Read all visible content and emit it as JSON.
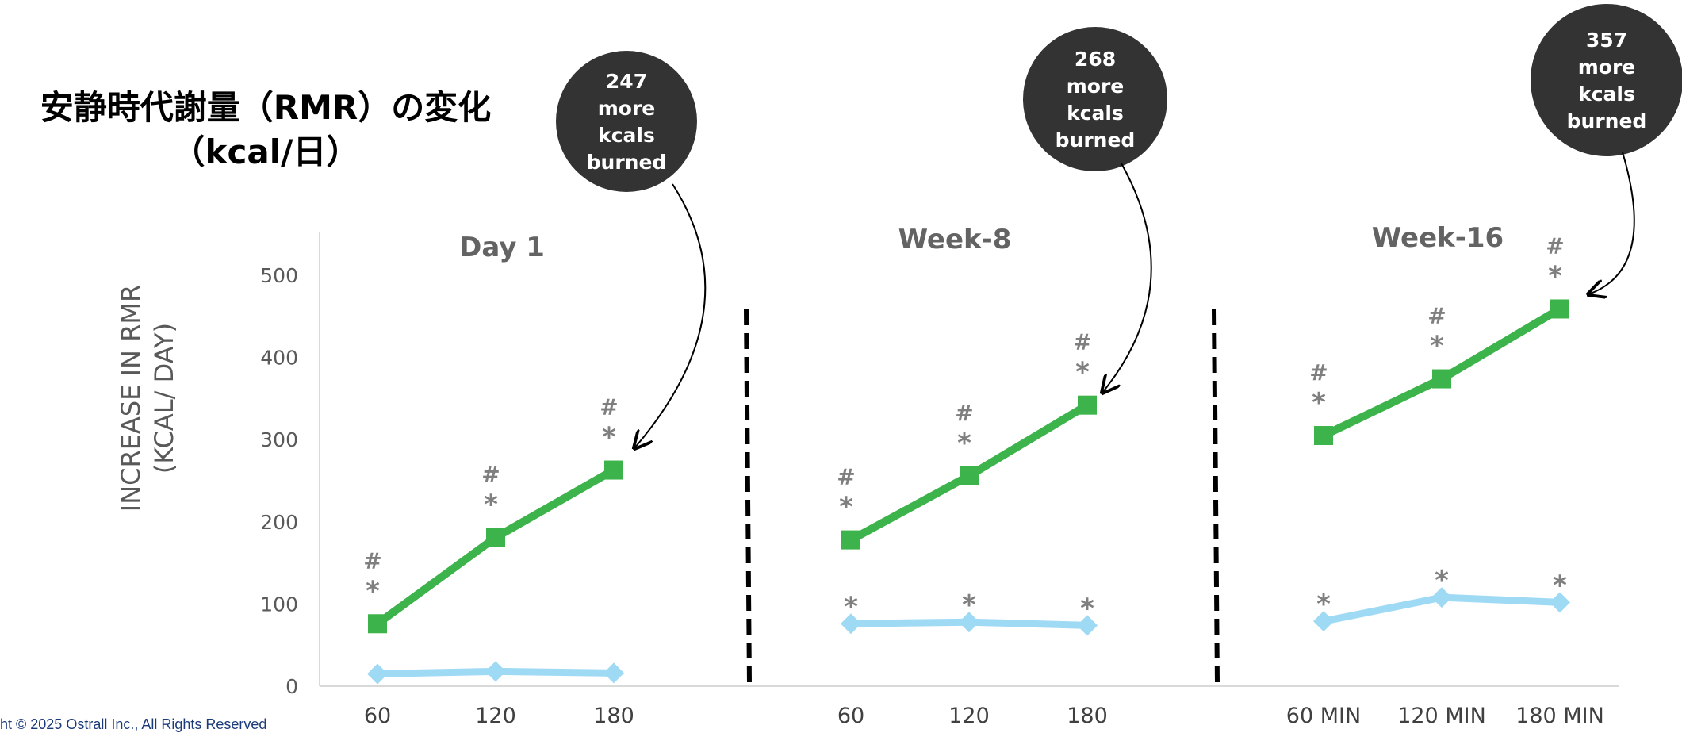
{
  "title_line1": "安静時代謝量（RMR）の変化",
  "title_line2": "（kcal/日）",
  "copyright": "ht © 2025 Ostrall Inc., All Rights Reserved",
  "chart_data": {
    "type": "line",
    "ylabel_line1": "INCREASE IN RMR",
    "ylabel_line2": "(KCAL/ DAY)",
    "ylim": [
      0,
      550
    ],
    "yticks": [
      0,
      100,
      200,
      300,
      400,
      500
    ],
    "grid": false,
    "colors": {
      "series_a": "#3cb44b",
      "series_b": "#9fdaf5",
      "callout": "#333333"
    },
    "panels": [
      {
        "title": "Day 1",
        "x": [
          "60",
          "120",
          "180"
        ],
        "series": [
          {
            "values": [
              76,
              181,
              263
            ],
            "marker": "square",
            "markers_above": [
              "#\n*",
              "#\n*",
              "#\n*"
            ]
          },
          {
            "values": [
              15,
              18,
              16
            ],
            "marker": "diamond",
            "markers_above": [
              "",
              "",
              ""
            ]
          }
        ],
        "callout": [
          "247",
          "more",
          "kcals",
          "burned"
        ]
      },
      {
        "title": "Week-8",
        "x": [
          "60",
          "120",
          "180"
        ],
        "series": [
          {
            "values": [
              178,
              256,
              342
            ],
            "marker": "square",
            "markers_above": [
              "#\n*",
              "#\n*",
              "#\n*"
            ]
          },
          {
            "values": [
              76,
              78,
              74
            ],
            "marker": "diamond",
            "markers_above": [
              "*",
              "*",
              "*"
            ]
          }
        ],
        "callout": [
          "268",
          "more",
          "kcals",
          "burned"
        ]
      },
      {
        "title": "Week-16",
        "x": [
          "60 MIN",
          "120 MIN",
          "180 MIN"
        ],
        "series": [
          {
            "values": [
              305,
              374,
              459
            ],
            "marker": "square",
            "markers_above": [
              "#\n*",
              "#\n*",
              "#\n*"
            ]
          },
          {
            "values": [
              79,
              108,
              102
            ],
            "marker": "diamond",
            "markers_above": [
              "*",
              "*",
              "*"
            ]
          }
        ],
        "callout": [
          "357",
          "more",
          "kcals",
          "burned"
        ]
      }
    ]
  }
}
